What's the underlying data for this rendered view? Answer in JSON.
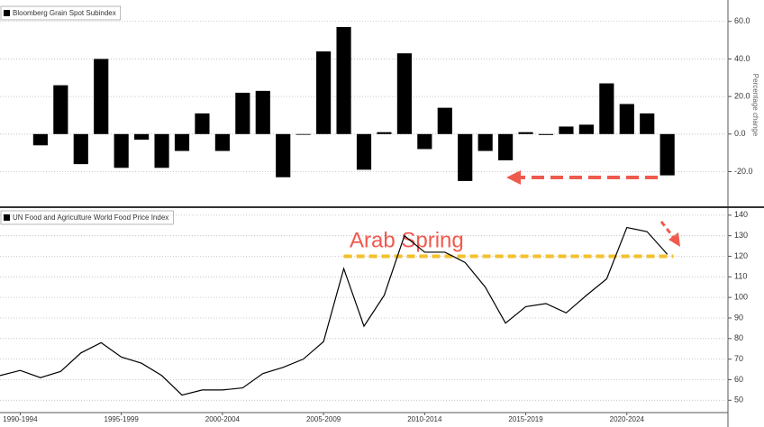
{
  "chart_data": [
    {
      "type": "bar",
      "y_label": "Percentage change",
      "x": [
        1993,
        1994,
        1995,
        1996,
        1997,
        1998,
        1999,
        2000,
        2001,
        2002,
        2003,
        2004,
        2005,
        2006,
        2007,
        2008,
        2009,
        2010,
        2011,
        2012,
        2013,
        2014,
        2015,
        2016,
        2017,
        2018,
        2019,
        2020,
        2021,
        2022,
        2023,
        2024
      ],
      "series": [
        {
          "name": "Bloomberg Grain Spot Subindex",
          "color": "#000000",
          "values": [
            -6,
            26,
            -16,
            40,
            -18,
            -3,
            -18,
            -9,
            11,
            -9,
            22,
            23,
            -23,
            0,
            44,
            57,
            -19,
            1,
            43,
            -8,
            14,
            -25,
            -9,
            -14,
            1,
            -0.5,
            4,
            5,
            27,
            16,
            11,
            -22
          ]
        }
      ],
      "xlim": [
        1991,
        2027
      ],
      "ylim": [
        -38,
        69
      ],
      "yticks": [
        {
          "value": -20,
          "label": "-20.0"
        },
        {
          "value": 0,
          "label": "0.0"
        },
        {
          "value": 20,
          "label": "20.0"
        },
        {
          "value": 40,
          "label": "40.0"
        },
        {
          "value": 60,
          "label": "60.0"
        }
      ],
      "grid": true
    },
    {
      "type": "line",
      "x": [
        1991,
        1992,
        1993,
        1994,
        1995,
        1996,
        1997,
        1998,
        1999,
        2000,
        2001,
        2002,
        2003,
        2004,
        2005,
        2006,
        2007,
        2008,
        2009,
        2010,
        2011,
        2012,
        2013,
        2014,
        2015,
        2016,
        2017,
        2018,
        2019,
        2020,
        2021,
        2022,
        2023,
        2024
      ],
      "series": [
        {
          "name": "UN Food and Agriculture World Food Price Index",
          "color": "#000000",
          "values": [
            62,
            64.5,
            61,
            64,
            73,
            78,
            71,
            68,
            62,
            52.5,
            55,
            55,
            56,
            63,
            66,
            70,
            78.5,
            114,
            86,
            101,
            130,
            122,
            122,
            117,
            105,
            87.5,
            95.5,
            97,
            92.5,
            101,
            109,
            134,
            132,
            121
          ]
        }
      ],
      "xlim": [
        1991,
        2027
      ],
      "ylim": [
        44,
        143
      ],
      "yticks": [
        50,
        60,
        70,
        80,
        90,
        100,
        110,
        120,
        130,
        140
      ],
      "xticks": [
        {
          "value": 1992,
          "label": "1990-1994"
        },
        {
          "value": 1997,
          "label": "1995-1999"
        },
        {
          "value": 2002,
          "label": "2000-2004"
        },
        {
          "value": 2007,
          "label": "2005-2009"
        },
        {
          "value": 2012,
          "label": "2010-2014"
        },
        {
          "value": 2017,
          "label": "2015-2019"
        },
        {
          "value": 2022,
          "label": "2020-2024"
        }
      ],
      "reference_line": {
        "value": 120,
        "color": "#f2c12e"
      },
      "annotations": [
        {
          "text": "Arab Spring",
          "color": "#f05a4f"
        }
      ],
      "grid": true
    }
  ]
}
